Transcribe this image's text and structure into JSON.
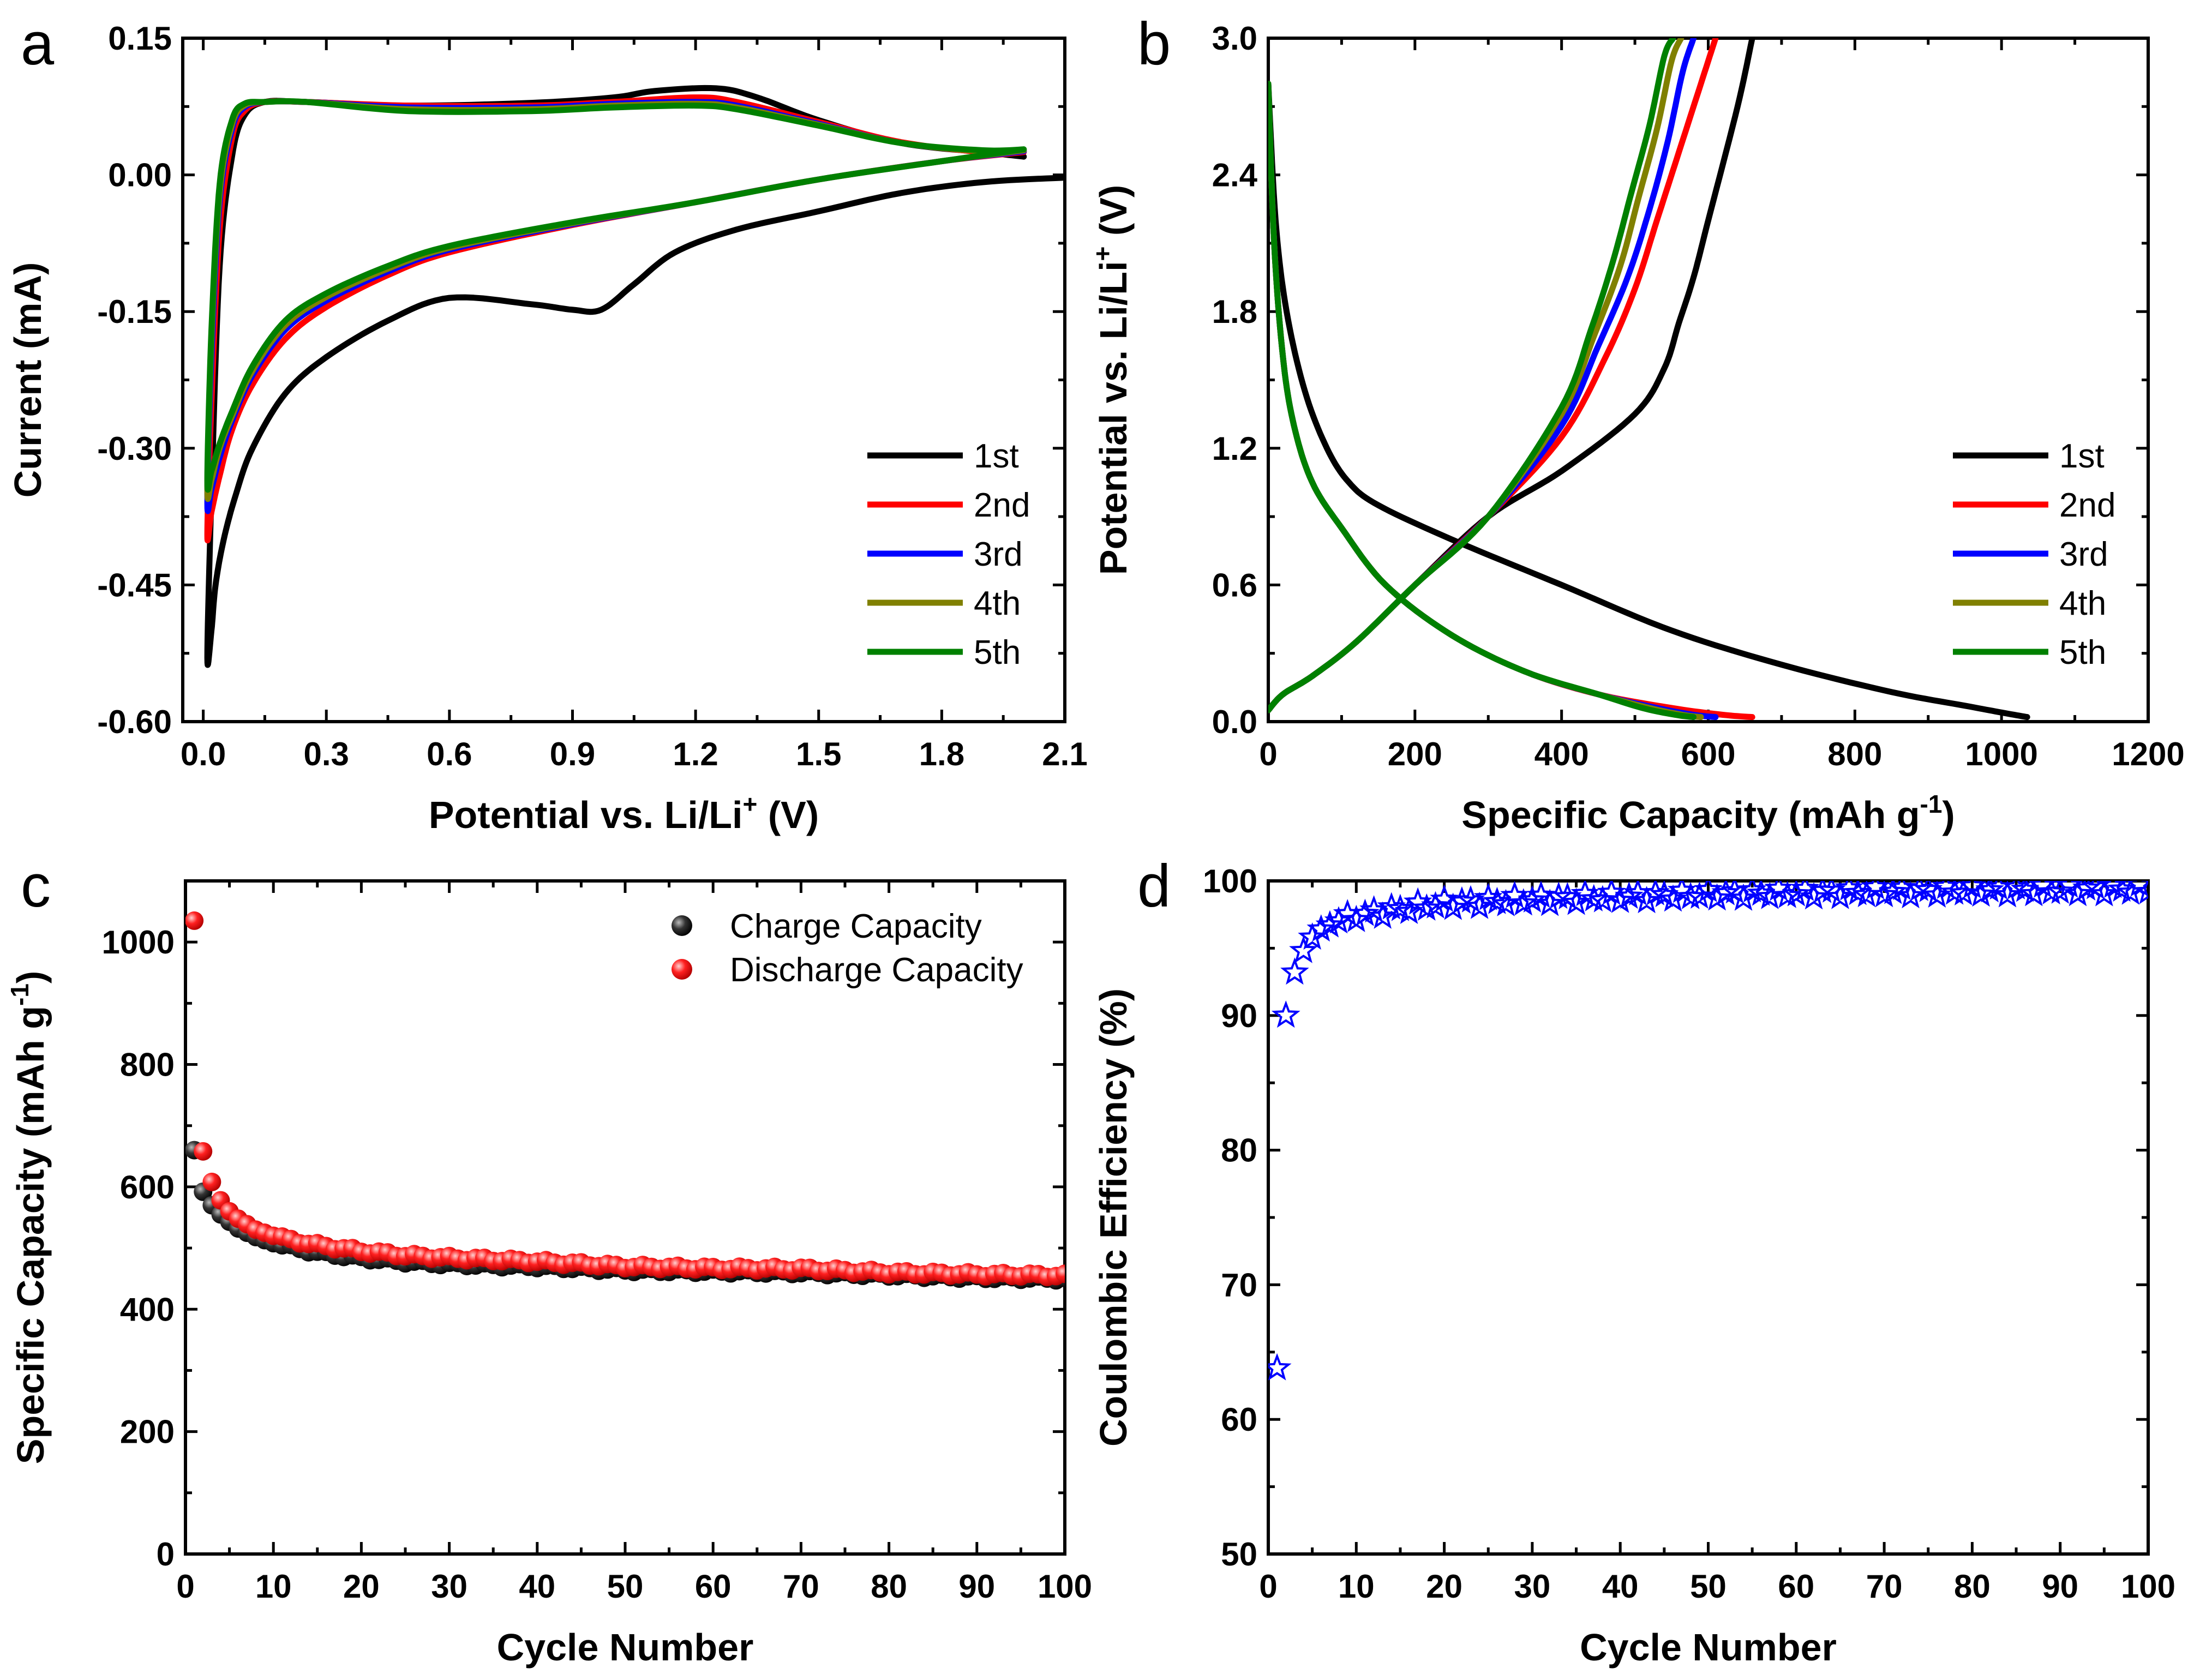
{
  "chart_data": [
    {
      "panel": "a",
      "type": "line",
      "title": "",
      "xlabel": "Potential vs. Li/Li",
      "xlabel_sup": "+",
      "xlabel_tail": " (V)",
      "ylabel": "Current (mA)",
      "xlim": [
        -0.05,
        2.1
      ],
      "ylim": [
        -0.6,
        0.15
      ],
      "xticks": [
        0.0,
        0.3,
        0.6,
        0.9,
        1.2,
        1.5,
        1.8,
        2.1
      ],
      "xtick_labels": [
        "0.0",
        "0.3",
        "0.6",
        "0.9",
        "1.2",
        "1.5",
        "1.8",
        "2.1"
      ],
      "yticks": [
        0.15,
        0.0,
        -0.15,
        -0.3,
        -0.45,
        -0.6
      ],
      "ytick_labels": [
        "0.15",
        "0.00",
        "-0.15",
        "-0.30",
        "-0.45",
        "-0.60"
      ],
      "legend_position": "bottom-right",
      "series": [
        {
          "name": "1st",
          "color": "#000000",
          "x": [
            2.1,
            1.9,
            1.7,
            1.5,
            1.3,
            1.15,
            1.05,
            0.97,
            0.9,
            0.8,
            0.6,
            0.45,
            0.3,
            0.2,
            0.12,
            0.08,
            0.05,
            0.03,
            0.02,
            0.01,
            0.02,
            0.04,
            0.07,
            0.1,
            0.15,
            0.25,
            0.5,
            0.8,
            1.0,
            1.1,
            1.25,
            1.35,
            1.5,
            1.7,
            1.9,
            2.0
          ],
          "y": [
            -0.003,
            -0.008,
            -0.02,
            -0.04,
            -0.06,
            -0.085,
            -0.12,
            -0.148,
            -0.148,
            -0.142,
            -0.135,
            -0.16,
            -0.2,
            -0.24,
            -0.3,
            -0.35,
            -0.4,
            -0.45,
            -0.5,
            -0.53,
            -0.35,
            -0.1,
            0.02,
            0.065,
            0.08,
            0.08,
            0.076,
            0.079,
            0.085,
            0.092,
            0.095,
            0.085,
            0.06,
            0.035,
            0.025,
            0.02
          ]
        },
        {
          "name": "2nd",
          "color": "#ff0000",
          "x": [
            2.0,
            1.8,
            1.5,
            1.2,
            0.9,
            0.6,
            0.45,
            0.3,
            0.2,
            0.12,
            0.07,
            0.04,
            0.02,
            0.01,
            0.02,
            0.04,
            0.07,
            0.1,
            0.15,
            0.25,
            0.5,
            0.8,
            1.0,
            1.2,
            1.3,
            1.5,
            1.7,
            1.9,
            2.0
          ],
          "y": [
            0.025,
            0.015,
            -0.005,
            -0.03,
            -0.055,
            -0.085,
            -0.11,
            -0.145,
            -0.18,
            -0.23,
            -0.28,
            -0.33,
            -0.37,
            -0.395,
            -0.25,
            -0.06,
            0.04,
            0.07,
            0.08,
            0.08,
            0.076,
            0.076,
            0.08,
            0.085,
            0.08,
            0.058,
            0.036,
            0.025,
            0.025
          ]
        },
        {
          "name": "3rd",
          "color": "#0000ff",
          "x": [
            2.0,
            1.8,
            1.5,
            1.2,
            0.9,
            0.6,
            0.45,
            0.3,
            0.2,
            0.12,
            0.07,
            0.04,
            0.02,
            0.01,
            0.02,
            0.04,
            0.07,
            0.1,
            0.15,
            0.25,
            0.5,
            0.8,
            1.0,
            1.2,
            1.3,
            1.5,
            1.7,
            1.9,
            2.0
          ],
          "y": [
            0.026,
            0.015,
            -0.005,
            -0.03,
            -0.054,
            -0.082,
            -0.106,
            -0.138,
            -0.17,
            -0.22,
            -0.27,
            -0.31,
            -0.345,
            -0.36,
            -0.2,
            -0.03,
            0.05,
            0.074,
            0.08,
            0.08,
            0.074,
            0.074,
            0.078,
            0.08,
            0.076,
            0.056,
            0.035,
            0.026,
            0.026
          ]
        },
        {
          "name": "4th",
          "color": "#808000",
          "x": [
            2.0,
            1.8,
            1.5,
            1.2,
            0.9,
            0.6,
            0.45,
            0.3,
            0.2,
            0.12,
            0.07,
            0.04,
            0.02,
            0.01,
            0.02,
            0.04,
            0.07,
            0.1,
            0.15,
            0.25,
            0.5,
            0.8,
            1.0,
            1.2,
            1.3,
            1.5,
            1.7,
            1.9,
            2.0
          ],
          "y": [
            0.027,
            0.015,
            -0.005,
            -0.03,
            -0.053,
            -0.08,
            -0.103,
            -0.134,
            -0.165,
            -0.215,
            -0.265,
            -0.3,
            -0.335,
            -0.345,
            -0.18,
            -0.02,
            0.055,
            0.076,
            0.08,
            0.08,
            0.072,
            0.072,
            0.076,
            0.078,
            0.074,
            0.055,
            0.035,
            0.026,
            0.027
          ]
        },
        {
          "name": "5th",
          "color": "#008000",
          "x": [
            2.0,
            1.8,
            1.5,
            1.2,
            0.9,
            0.6,
            0.45,
            0.3,
            0.2,
            0.12,
            0.07,
            0.04,
            0.02,
            0.01,
            0.02,
            0.04,
            0.07,
            0.1,
            0.15,
            0.25,
            0.5,
            0.8,
            1.0,
            1.2,
            1.3,
            1.5,
            1.7,
            1.9,
            2.0
          ],
          "y": [
            0.028,
            0.015,
            -0.005,
            -0.03,
            -0.052,
            -0.078,
            -0.1,
            -0.13,
            -0.16,
            -0.21,
            -0.26,
            -0.295,
            -0.325,
            -0.335,
            -0.17,
            -0.01,
            0.06,
            0.078,
            0.08,
            0.08,
            0.07,
            0.07,
            0.074,
            0.076,
            0.072,
            0.054,
            0.035,
            0.027,
            0.028
          ]
        }
      ]
    },
    {
      "panel": "b",
      "type": "line",
      "title": "",
      "xlabel": "Specific Capacity (mAh g",
      "xlabel_sup": "-1",
      "xlabel_tail": ")",
      "ylabel": "Potential vs. Li/Li",
      "ylabel_sup": "+",
      "ylabel_tail": " (V)",
      "xlim": [
        0,
        1200
      ],
      "ylim": [
        0,
        3.0
      ],
      "xticks": [
        0,
        200,
        400,
        600,
        800,
        1000,
        1200
      ],
      "xtick_labels": [
        "0",
        "200",
        "400",
        "600",
        "800",
        "1000",
        "1200"
      ],
      "yticks": [
        0.0,
        0.6,
        1.2,
        1.8,
        2.4,
        3.0
      ],
      "ytick_labels": [
        "0.0",
        "0.6",
        "1.2",
        "1.8",
        "2.4",
        "3.0"
      ],
      "legend_position": "bottom-right",
      "series": [
        {
          "name": "1st",
          "color": "#000000",
          "discharge_x": [
            0,
            10,
            25,
            50,
            80,
            110,
            150,
            250,
            400,
            550,
            700,
            850,
            950,
            1000,
            1035
          ],
          "discharge_y": [
            2.8,
            2.2,
            1.8,
            1.45,
            1.2,
            1.05,
            0.95,
            0.8,
            0.6,
            0.4,
            0.25,
            0.13,
            0.07,
            0.04,
            0.02
          ],
          "charge_x": [
            0,
            20,
            60,
            120,
            200,
            300,
            400,
            500,
            540,
            560,
            580,
            600,
            640,
            660
          ],
          "charge_y": [
            0.05,
            0.12,
            0.2,
            0.35,
            0.6,
            0.9,
            1.1,
            1.35,
            1.55,
            1.75,
            1.95,
            2.2,
            2.7,
            3.0
          ]
        },
        {
          "name": "2nd",
          "color": "#ff0000",
          "discharge_x": [
            0,
            8,
            20,
            35,
            60,
            100,
            160,
            250,
            350,
            450,
            550,
            620,
            660
          ],
          "discharge_y": [
            2.8,
            2.1,
            1.6,
            1.3,
            1.05,
            0.85,
            0.6,
            0.38,
            0.22,
            0.12,
            0.06,
            0.03,
            0.02
          ],
          "charge_x": [
            0,
            20,
            60,
            120,
            200,
            300,
            400,
            460,
            500,
            530,
            560,
            590,
            610
          ],
          "charge_y": [
            0.05,
            0.12,
            0.2,
            0.35,
            0.6,
            0.9,
            1.25,
            1.6,
            1.9,
            2.2,
            2.5,
            2.8,
            3.0
          ]
        },
        {
          "name": "3rd",
          "color": "#0000ff",
          "discharge_x": [
            0,
            8,
            20,
            35,
            60,
            100,
            160,
            250,
            350,
            450,
            530,
            580,
            610
          ],
          "discharge_y": [
            2.8,
            2.1,
            1.6,
            1.3,
            1.05,
            0.85,
            0.6,
            0.38,
            0.22,
            0.12,
            0.06,
            0.03,
            0.02
          ],
          "charge_x": [
            0,
            20,
            60,
            120,
            200,
            300,
            400,
            450,
            490,
            520,
            545,
            565,
            580
          ],
          "charge_y": [
            0.05,
            0.12,
            0.2,
            0.35,
            0.6,
            0.9,
            1.3,
            1.65,
            1.95,
            2.25,
            2.55,
            2.85,
            3.0
          ]
        },
        {
          "name": "4th",
          "color": "#808000",
          "discharge_x": [
            0,
            8,
            20,
            35,
            60,
            100,
            160,
            250,
            350,
            450,
            520,
            565,
            590
          ],
          "discharge_y": [
            2.8,
            2.1,
            1.6,
            1.3,
            1.05,
            0.85,
            0.6,
            0.38,
            0.22,
            0.12,
            0.06,
            0.03,
            0.02
          ],
          "charge_x": [
            0,
            20,
            60,
            120,
            200,
            300,
            400,
            445,
            480,
            505,
            530,
            550,
            563
          ],
          "charge_y": [
            0.05,
            0.12,
            0.2,
            0.35,
            0.6,
            0.9,
            1.35,
            1.7,
            2.0,
            2.3,
            2.6,
            2.9,
            3.0
          ]
        },
        {
          "name": "5th",
          "color": "#008000",
          "discharge_x": [
            0,
            8,
            20,
            35,
            60,
            100,
            160,
            250,
            350,
            450,
            510,
            555,
            580
          ],
          "discharge_y": [
            2.8,
            2.1,
            1.6,
            1.3,
            1.05,
            0.85,
            0.6,
            0.38,
            0.22,
            0.12,
            0.06,
            0.03,
            0.02
          ],
          "charge_x": [
            0,
            20,
            60,
            120,
            200,
            300,
            400,
            440,
            470,
            495,
            520,
            540,
            552
          ],
          "charge_y": [
            0.05,
            0.12,
            0.2,
            0.35,
            0.6,
            0.9,
            1.38,
            1.72,
            2.02,
            2.32,
            2.62,
            2.92,
            3.0
          ]
        }
      ]
    },
    {
      "panel": "c",
      "type": "scatter",
      "title": "",
      "xlabel": "Cycle Number",
      "ylabel": "Specific Capacity (mAh g",
      "ylabel_sup": "-1",
      "ylabel_tail": ")",
      "xlim": [
        0,
        100
      ],
      "ylim": [
        0,
        1100
      ],
      "xticks": [
        0,
        10,
        20,
        30,
        40,
        50,
        60,
        70,
        80,
        90,
        100
      ],
      "xtick_labels": [
        "0",
        "10",
        "20",
        "30",
        "40",
        "50",
        "60",
        "70",
        "80",
        "90",
        "100"
      ],
      "yticks": [
        0,
        200,
        400,
        600,
        800,
        1000
      ],
      "ytick_labels": [
        "0",
        "200",
        "400",
        "600",
        "800",
        "1000"
      ],
      "legend_position": "top-right",
      "series": [
        {
          "name": "Charge Capacity",
          "color": "#000000",
          "anchors_x": [
            1,
            2,
            3,
            4,
            5,
            6,
            8,
            10,
            12,
            15,
            20,
            25,
            30,
            40,
            50,
            60,
            70,
            80,
            90,
            100
          ],
          "anchors_y": [
            660,
            592,
            570,
            555,
            543,
            532,
            518,
            508,
            502,
            493,
            484,
            478,
            474,
            470,
            464,
            462,
            460,
            456,
            452,
            450
          ]
        },
        {
          "name": "Discharge Capacity",
          "color": "#ff0000",
          "anchors_x": [
            1,
            2,
            3,
            4,
            5,
            6,
            8,
            10,
            12,
            15,
            20,
            25,
            30,
            40,
            50,
            60,
            70,
            80,
            90,
            100
          ],
          "anchors_y": [
            1035,
            658,
            608,
            578,
            560,
            548,
            530,
            520,
            513,
            505,
            495,
            488,
            484,
            478,
            470,
            467,
            466,
            460,
            457,
            455
          ]
        }
      ]
    },
    {
      "panel": "d",
      "type": "scatter",
      "title": "",
      "xlabel": "Cycle Number",
      "ylabel": "Coulombic Efficiency (%)",
      "xlim": [
        0,
        100
      ],
      "ylim": [
        50,
        100
      ],
      "xticks": [
        0,
        10,
        20,
        30,
        40,
        50,
        60,
        70,
        80,
        90,
        100
      ],
      "xtick_labels": [
        "0",
        "10",
        "20",
        "30",
        "40",
        "50",
        "60",
        "70",
        "80",
        "90",
        "100"
      ],
      "yticks": [
        50,
        60,
        70,
        80,
        90,
        100
      ],
      "ytick_labels": [
        "50",
        "60",
        "70",
        "80",
        "90",
        "100"
      ],
      "series": [
        {
          "name": "Coulombic Efficiency",
          "color": "#0000ff",
          "anchors_x": [
            1,
            2,
            3,
            4,
            5,
            6,
            8,
            10,
            15,
            20,
            30,
            50,
            70,
            100
          ],
          "anchors_y": [
            63.8,
            90.0,
            93.2,
            94.8,
            95.8,
            96.4,
            97.0,
            97.4,
            97.9,
            98.3,
            98.6,
            99.0,
            99.2,
            99.4
          ]
        }
      ]
    }
  ]
}
